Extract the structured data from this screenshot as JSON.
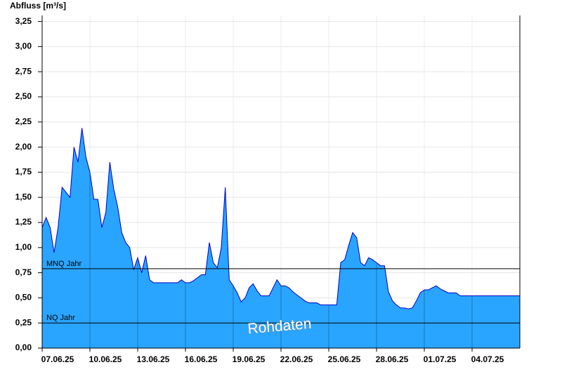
{
  "chart_data": {
    "type": "area",
    "title": "Abfluss [m³/s]",
    "categories": [
      "07.06.25",
      null,
      null,
      null,
      null,
      null,
      null,
      null,
      null,
      null,
      null,
      null,
      "10.06.25",
      null,
      null,
      null,
      null,
      null,
      null,
      null,
      null,
      null,
      null,
      null,
      "13.06.25",
      null,
      null,
      null,
      null,
      null,
      null,
      null,
      null,
      null,
      null,
      null,
      "16.06.25",
      null,
      null,
      null,
      null,
      null,
      null,
      null,
      null,
      null,
      null,
      null,
      "19.06.25",
      null,
      null,
      null,
      null,
      null,
      null,
      null,
      null,
      null,
      null,
      null,
      "22.06.25",
      null,
      null,
      null,
      null,
      null,
      null,
      null,
      null,
      null,
      null,
      null,
      "25.06.25",
      null,
      null,
      null,
      null,
      null,
      null,
      null,
      null,
      null,
      null,
      null,
      "28.06.25",
      null,
      null,
      null,
      null,
      null,
      null,
      null,
      null,
      null,
      null,
      null,
      "01.07.25",
      null,
      null,
      null,
      null,
      null,
      null,
      null,
      null,
      null,
      null,
      null,
      "04.07.25",
      null,
      null,
      null,
      null,
      null,
      null,
      null,
      null,
      null,
      null,
      null,
      null
    ],
    "values": [
      1.2,
      1.3,
      1.2,
      0.95,
      1.2,
      1.6,
      1.55,
      1.5,
      2.0,
      1.85,
      2.19,
      1.9,
      1.75,
      1.48,
      1.48,
      1.2,
      1.35,
      1.85,
      1.58,
      1.4,
      1.15,
      1.05,
      1.0,
      0.78,
      0.9,
      0.75,
      0.92,
      0.68,
      0.65,
      0.65,
      0.65,
      0.65,
      0.65,
      0.65,
      0.65,
      0.68,
      0.65,
      0.65,
      0.67,
      0.7,
      0.73,
      0.73,
      1.05,
      0.85,
      0.8,
      1.0,
      1.6,
      0.68,
      0.62,
      0.55,
      0.46,
      0.5,
      0.6,
      0.64,
      0.57,
      0.52,
      0.52,
      0.52,
      0.6,
      0.68,
      0.62,
      0.62,
      0.6,
      0.56,
      0.53,
      0.5,
      0.47,
      0.45,
      0.45,
      0.45,
      0.43,
      0.43,
      0.43,
      0.43,
      0.43,
      0.85,
      0.88,
      1.02,
      1.15,
      1.1,
      0.85,
      0.82,
      0.9,
      0.88,
      0.85,
      0.82,
      0.82,
      0.56,
      0.47,
      0.43,
      0.4,
      0.4,
      0.39,
      0.4,
      0.47,
      0.55,
      0.58,
      0.58,
      0.6,
      0.62,
      0.59,
      0.57,
      0.55,
      0.55,
      0.55,
      0.52,
      0.52,
      0.52,
      0.52,
      0.52,
      0.52,
      0.52,
      0.52,
      0.52,
      0.52,
      0.52,
      0.52,
      0.52,
      0.52,
      0.52,
      0.52
    ],
    "color": "#29a5ff",
    "line_color": "#0000c8",
    "ylim": [
      0,
      3.31
    ],
    "yticks": [
      {
        "value": 0,
        "label": "0,00"
      },
      {
        "value": 0.25,
        "label": "0,25"
      },
      {
        "value": 0.5,
        "label": "0,50"
      },
      {
        "value": 0.75,
        "label": "0,75"
      },
      {
        "value": 1,
        "label": "1,00"
      },
      {
        "value": 1.25,
        "label": "1,25"
      },
      {
        "value": 1.5,
        "label": "1,50"
      },
      {
        "value": 1.75,
        "label": "1,75"
      },
      {
        "value": 2,
        "label": "2,00"
      },
      {
        "value": 2.25,
        "label": "2,25"
      },
      {
        "value": 2.5,
        "label": "2,50"
      },
      {
        "value": 2.75,
        "label": "2,75"
      },
      {
        "value": 3,
        "label": "3,00"
      },
      {
        "value": 3.25,
        "label": "3,25"
      }
    ],
    "grid": true,
    "reference_lines": [
      {
        "label": "MNQ Jahr",
        "value": 0.79
      },
      {
        "label": "NQ Jahr",
        "value": 0.25
      }
    ],
    "watermark": "Rohdaten"
  }
}
